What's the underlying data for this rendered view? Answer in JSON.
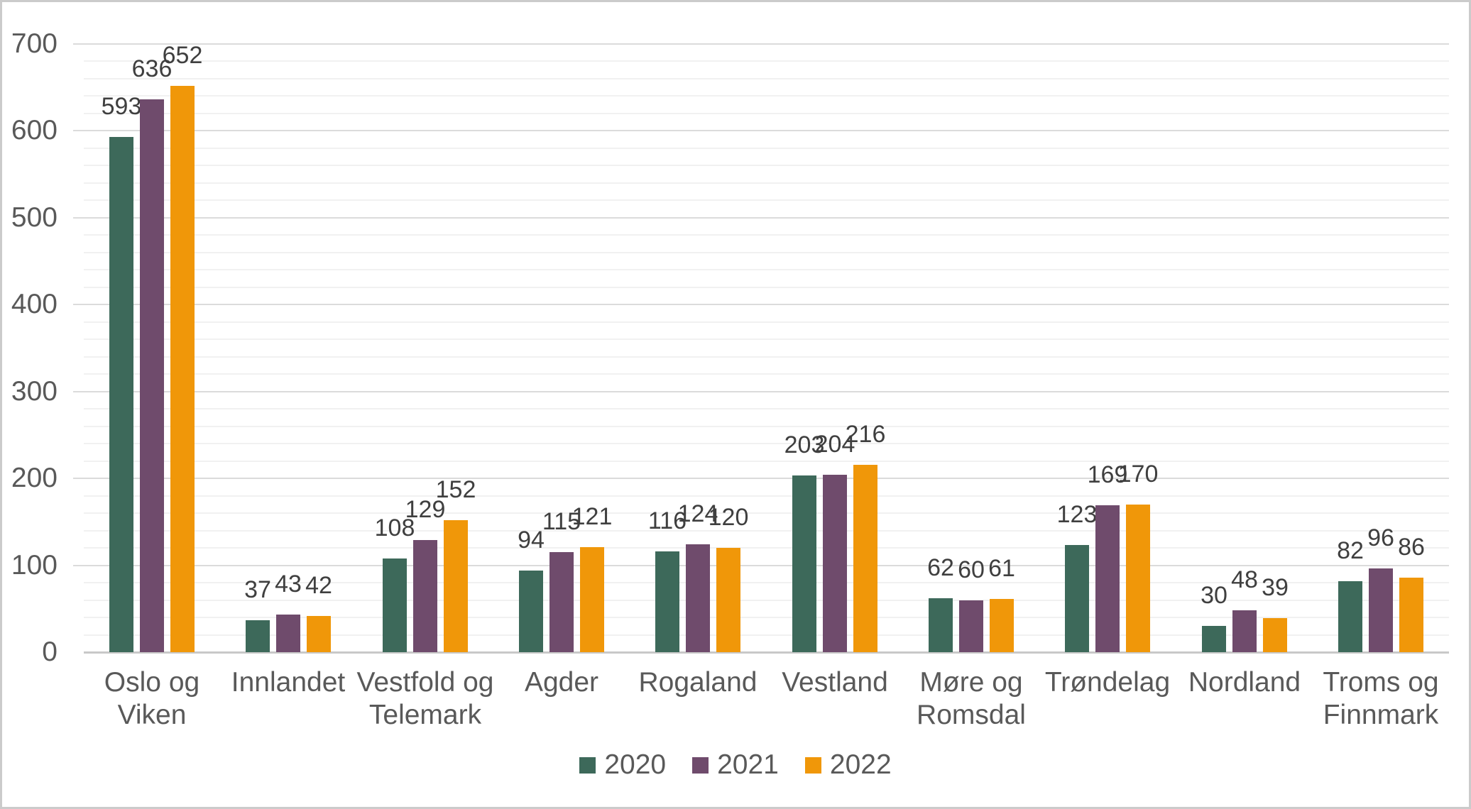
{
  "chart_data": {
    "type": "bar",
    "title": "",
    "xlabel": "",
    "ylabel": "",
    "categories": [
      "Oslo og Viken",
      "Innlandet",
      "Vestfold og Telemark",
      "Agder",
      "Rogaland",
      "Vestland",
      "Møre og Romsdal",
      "Trøndelag",
      "Nordland",
      "Troms og Finnmark"
    ],
    "series": [
      {
        "name": "2020",
        "color": "#3D695A",
        "values": [
          593,
          37,
          108,
          94,
          116,
          203,
          62,
          123,
          30,
          82
        ]
      },
      {
        "name": "2021",
        "color": "#6F4B6C",
        "values": [
          636,
          43,
          129,
          115,
          124,
          204,
          60,
          169,
          48,
          96
        ]
      },
      {
        "name": "2022",
        "color": "#F09709",
        "values": [
          652,
          42,
          152,
          121,
          120,
          216,
          61,
          170,
          39,
          86
        ]
      }
    ],
    "ylim": [
      0,
      700
    ],
    "y_major_step": 100,
    "y_minor_step": 20,
    "y_tick_labels": [
      "0",
      "100",
      "200",
      "300",
      "400",
      "500",
      "600",
      "700"
    ],
    "grid": "horizontal, minor every 20 (light), major every 100 (darker)",
    "legend_position": "bottom-center",
    "data_labels": "value above each bar",
    "colors": {
      "axis_text": "#595959",
      "data_label_text": "#3F3F3F",
      "gridline_minor": "#F1F1F1",
      "gridline_major": "#DBDBDB",
      "axis_line": "#C8C8C8",
      "background": "#FFFFFF",
      "border": "#CBCBCB"
    }
  }
}
